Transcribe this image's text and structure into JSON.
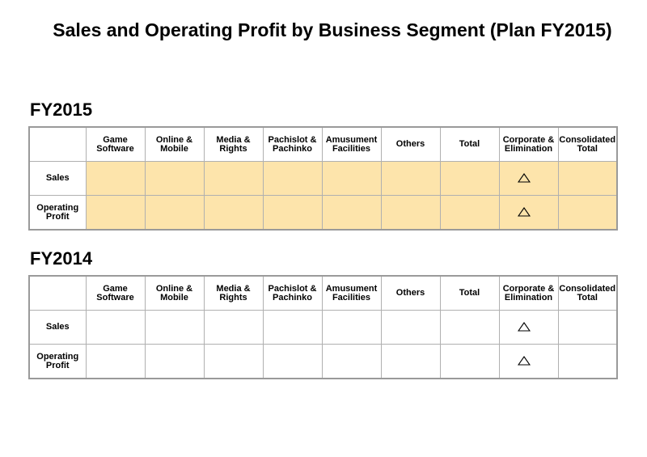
{
  "page": {
    "title": "Sales and Operating Profit by Business Segment (Plan FY2015)"
  },
  "columns": [
    {
      "line1": "Game",
      "line2": "Software"
    },
    {
      "line1": "Online &",
      "line2": "Mobile"
    },
    {
      "line1": "Media &",
      "line2": "Rights"
    },
    {
      "line1": "Pachislot &",
      "line2": "Pachinko"
    },
    {
      "line1": "Amusument",
      "line2": "Facilities"
    },
    {
      "line1": "Others",
      "line2": ""
    },
    {
      "line1": "Total",
      "line2": ""
    },
    {
      "line1": "Corporate &",
      "line2": "Elimination"
    },
    {
      "line1": "Consolidated",
      "line2": "Total"
    }
  ],
  "rows": [
    {
      "line1": "Sales",
      "line2": ""
    },
    {
      "line1": "Operating",
      "line2": "Profit"
    }
  ],
  "sections": {
    "fy2015": {
      "heading": "FY2015",
      "fill_color": "#fde4ab",
      "cells": [
        [
          "",
          "",
          "",
          "",
          "",
          "",
          "",
          "triangle-icon",
          ""
        ],
        [
          "",
          "",
          "",
          "",
          "",
          "",
          "",
          "triangle-icon",
          ""
        ]
      ]
    },
    "fy2014": {
      "heading": "FY2014",
      "fill_color": "#ffffff",
      "cells": [
        [
          "",
          "",
          "",
          "",
          "",
          "",
          "",
          "triangle-icon",
          ""
        ],
        [
          "",
          "",
          "",
          "",
          "",
          "",
          "",
          "triangle-icon",
          ""
        ]
      ]
    }
  },
  "colors": {
    "grid_border": "#9a9a9a",
    "highlight_fill": "#fde4ab"
  }
}
